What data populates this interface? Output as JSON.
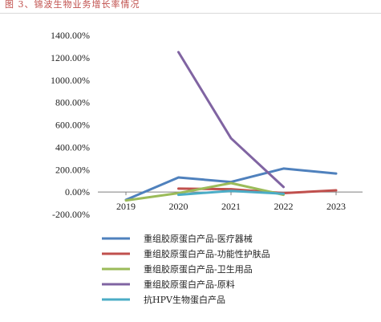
{
  "figure": {
    "title": "图 3、锦波生物业务增长率情况"
  },
  "chart_data": {
    "type": "line",
    "title": "",
    "xlabel": "",
    "ylabel": "",
    "x": [
      "2019",
      "2020",
      "2021",
      "2022",
      "2023"
    ],
    "ylim": [
      -200,
      1400
    ],
    "yticks": [
      1400,
      1200,
      1000,
      800,
      600,
      400,
      200,
      0,
      -200
    ],
    "ytick_labels": [
      "1400.00%",
      "1200.00%",
      "1000.00%",
      "800.00%",
      "600.00%",
      "400.00%",
      "200.00%",
      "0.00%",
      "-200.00%"
    ],
    "grid": false,
    "legend_position": "bottom",
    "series": [
      {
        "name": "重组胶原蛋白产品-医疗器械",
        "color": "#4f81bd",
        "values": [
          -70,
          130,
          90,
          210,
          165
        ]
      },
      {
        "name": "重组胶原蛋白产品-功能性护肤品",
        "color": "#c0504d",
        "values": [
          null,
          30,
          25,
          -10,
          15
        ]
      },
      {
        "name": "重组胶原蛋白产品-卫生用品",
        "color": "#9bbb59",
        "values": [
          -75,
          -10,
          80,
          -25,
          null
        ]
      },
      {
        "name": "重组胶原蛋白产品-原料",
        "color": "#8064a2",
        "values": [
          null,
          1250,
          480,
          45,
          null
        ]
      },
      {
        "name": "抗HPV生物蛋白产品",
        "color": "#4bacc6",
        "values": [
          null,
          -25,
          10,
          -15,
          null
        ]
      }
    ]
  }
}
